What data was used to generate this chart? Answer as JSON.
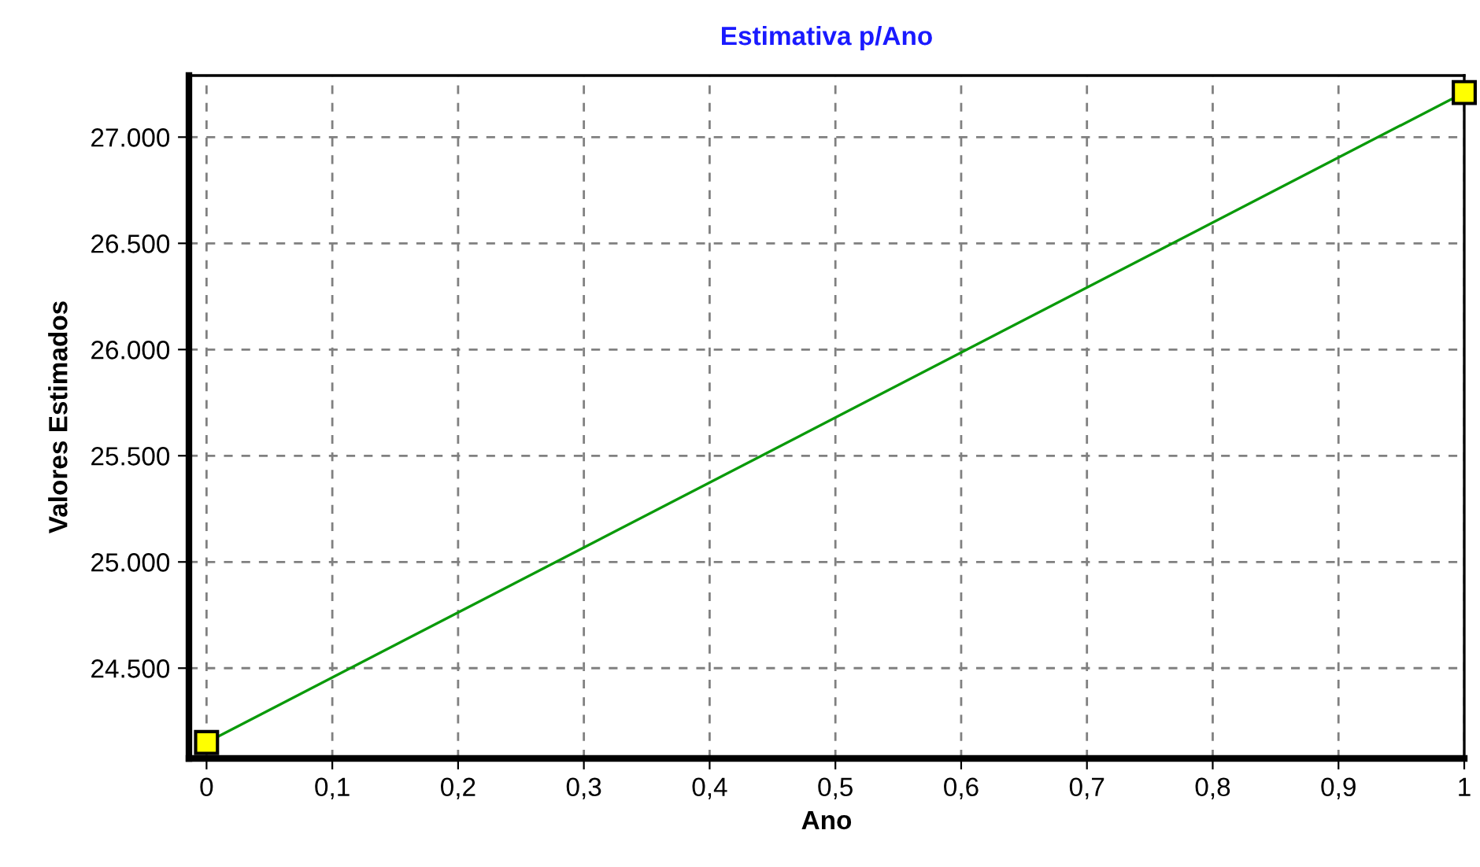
{
  "chart_data": {
    "type": "line",
    "title": "Estimativa p/Ano",
    "xlabel": "Ano",
    "ylabel": "Valores Estimados",
    "x": [
      0,
      1
    ],
    "series": [
      {
        "color": "#0a9a0a",
        "values": [
          24150,
          27210
        ]
      }
    ],
    "marker": "square",
    "grid": true,
    "xlim": [
      -0.014,
      1.0
    ],
    "ylim": [
      24075,
      27290
    ],
    "xticks": [
      0,
      {
        "value": 0.1,
        "label": "0,1"
      },
      {
        "value": 0.2,
        "label": "0,2"
      },
      {
        "value": 0.3,
        "label": "0,3"
      },
      {
        "value": 0.4,
        "label": "0,4"
      },
      {
        "value": 0.5,
        "label": "0,5"
      },
      {
        "value": 0.6,
        "label": "0,6"
      },
      {
        "value": 0.7,
        "label": "0,7"
      },
      {
        "value": 0.8,
        "label": "0,8"
      },
      {
        "value": 0.9,
        "label": "0,9"
      },
      1
    ],
    "yticks": [
      {
        "value": 24500,
        "label": "24.500"
      },
      {
        "value": 25000,
        "label": "25.000"
      },
      {
        "value": 25500,
        "label": "25.500"
      },
      {
        "value": 26000,
        "label": "26.000"
      },
      {
        "value": 26500,
        "label": "26.500"
      },
      {
        "value": 27000,
        "label": "27.000"
      }
    ]
  }
}
